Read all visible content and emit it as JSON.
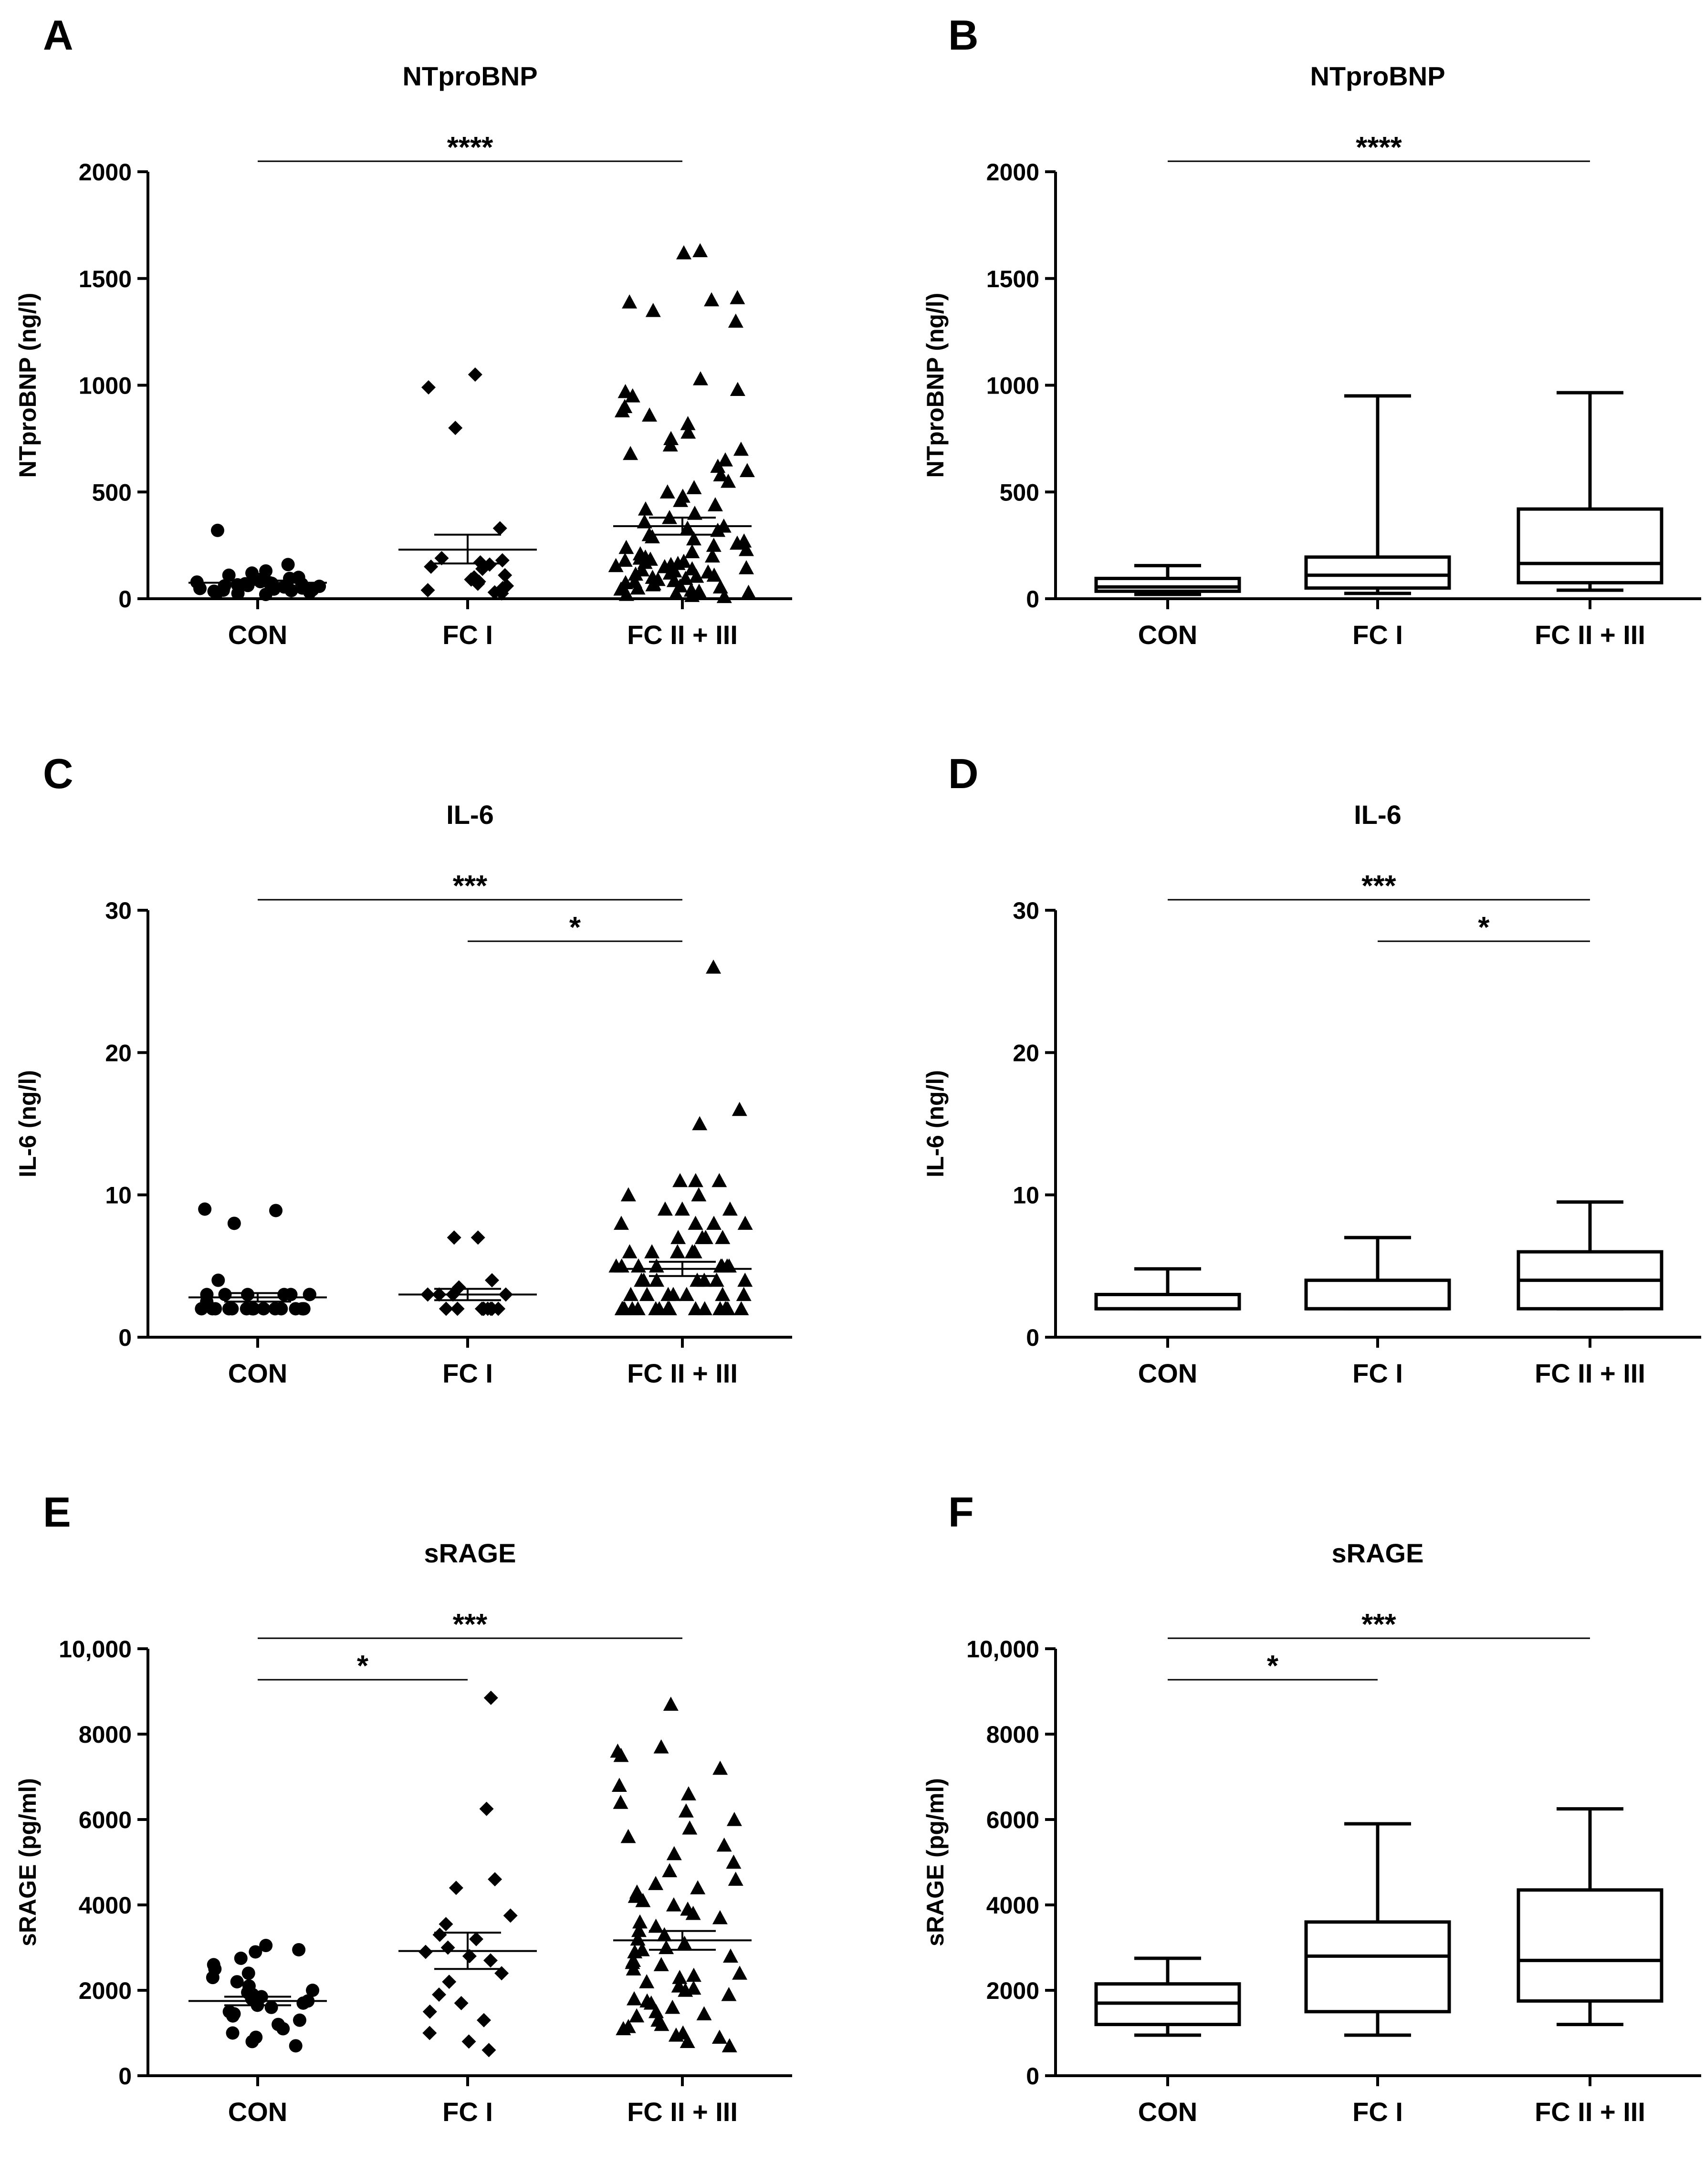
{
  "categories": [
    "CON",
    "FC I",
    "FC II + III"
  ],
  "panels": [
    {
      "id": "A",
      "label": "A",
      "title": "NTproBNP",
      "ylabel": "NTproBNP (ng/l)",
      "style": "scatter",
      "yticks": [
        "0",
        "500",
        "1000",
        "1500",
        "2000"
      ],
      "ytick_values": [
        0,
        500,
        1000,
        1500,
        2000
      ],
      "ylim": [
        0,
        2000
      ],
      "sig": [
        {
          "from": 0,
          "to": 2,
          "text": "****"
        }
      ]
    },
    {
      "id": "B",
      "label": "B",
      "title": "NTproBNP",
      "ylabel": "NTproBNP (ng/l)",
      "style": "box",
      "yticks": [
        "0",
        "500",
        "1000",
        "1500",
        "2000"
      ],
      "ytick_values": [
        0,
        500,
        1000,
        1500,
        2000
      ],
      "ylim": [
        0,
        2000
      ],
      "sig": [
        {
          "from": 0,
          "to": 2,
          "text": "****"
        }
      ]
    },
    {
      "id": "C",
      "label": "C",
      "title": "IL-6",
      "ylabel": "IL-6 (ng/l)",
      "style": "scatter",
      "yticks": [
        "0",
        "10",
        "20",
        "30"
      ],
      "ytick_values": [
        0,
        10,
        20,
        30
      ],
      "ylim": [
        0,
        30
      ],
      "sig": [
        {
          "from": 0,
          "to": 2,
          "text": "***"
        },
        {
          "from": 1,
          "to": 2,
          "text": "*"
        }
      ]
    },
    {
      "id": "D",
      "label": "D",
      "title": "IL-6",
      "ylabel": "IL-6 (ng/l)",
      "style": "box",
      "yticks": [
        "0",
        "10",
        "20",
        "30"
      ],
      "ytick_values": [
        0,
        10,
        20,
        30
      ],
      "ylim": [
        0,
        30
      ],
      "sig": [
        {
          "from": 0,
          "to": 2,
          "text": "***"
        },
        {
          "from": 1,
          "to": 2,
          "text": "*"
        }
      ]
    },
    {
      "id": "E",
      "label": "E",
      "title": "sRAGE",
      "ylabel": "sRAGE (pg/ml)",
      "style": "scatter",
      "yticks": [
        "0",
        "2000",
        "4000",
        "6000",
        "8000",
        "10,000"
      ],
      "ytick_values": [
        0,
        2000,
        4000,
        6000,
        8000,
        10000
      ],
      "ylim": [
        0,
        10000
      ],
      "sig": [
        {
          "from": 0,
          "to": 2,
          "text": "***"
        },
        {
          "from": 0,
          "to": 1,
          "text": "*"
        }
      ]
    },
    {
      "id": "F",
      "label": "F",
      "title": "sRAGE",
      "ylabel": "sRAGE (pg/ml)",
      "style": "box",
      "yticks": [
        "0",
        "2000",
        "4000",
        "6000",
        "8000",
        "10,000"
      ],
      "ytick_values": [
        0,
        2000,
        4000,
        6000,
        8000,
        10000
      ],
      "ylim": [
        0,
        10000
      ],
      "sig": [
        {
          "from": 0,
          "to": 2,
          "text": "***"
        },
        {
          "from": 0,
          "to": 1,
          "text": "*"
        }
      ]
    }
  ],
  "chart_data": [
    {
      "type": "scatter",
      "panel": "A",
      "title": "NTproBNP",
      "ylabel": "NTproBNP (ng/l)",
      "ylim": [
        0,
        2000
      ],
      "categories": [
        "CON",
        "FC I",
        "FC II + III"
      ],
      "markers": [
        "circle",
        "diamond",
        "triangle"
      ],
      "series": [
        {
          "category": "CON",
          "values": [
            320,
            160,
            130,
            120,
            110,
            100,
            95,
            90,
            85,
            80,
            78,
            75,
            72,
            70,
            68,
            65,
            62,
            60,
            58,
            55,
            52,
            50,
            48,
            45,
            42,
            40,
            38,
            35,
            30,
            28,
            25,
            20
          ]
        },
        {
          "category": "FC I",
          "values": [
            1050,
            990,
            800,
            330,
            190,
            180,
            170,
            160,
            150,
            140,
            110,
            100,
            90,
            80,
            70,
            60,
            50,
            40,
            30,
            25
          ]
        },
        {
          "category": "FC II + III",
          "values": [
            1630,
            1620,
            1410,
            1400,
            1390,
            1350,
            1300,
            1030,
            980,
            970,
            950,
            900,
            880,
            860,
            820,
            780,
            750,
            720,
            700,
            680,
            650,
            620,
            600,
            580,
            550,
            520,
            500,
            480,
            460,
            440,
            420,
            400,
            380,
            360,
            340,
            330,
            320,
            300,
            290,
            280,
            270,
            260,
            250,
            240,
            230,
            220,
            210,
            200,
            195,
            190,
            185,
            180,
            175,
            170,
            165,
            160,
            155,
            150,
            145,
            140,
            135,
            130,
            125,
            120,
            115,
            110,
            105,
            100,
            95,
            90,
            85,
            80,
            75,
            70,
            65,
            60,
            55,
            50,
            45,
            40,
            35,
            30,
            25,
            20,
            15,
            10
          ]
        }
      ],
      "mean": [
        75,
        230,
        340
      ],
      "sem_low": [
        65,
        165,
        300
      ],
      "sem_high": [
        85,
        300,
        380
      ]
    },
    {
      "type": "box",
      "panel": "B",
      "title": "NTproBNP",
      "ylabel": "NTproBNP (ng/l)",
      "ylim": [
        0,
        2000
      ],
      "categories": [
        "CON",
        "FC I",
        "FC II + III"
      ],
      "whisker_low": [
        20,
        25,
        40
      ],
      "q1": [
        35,
        50,
        75
      ],
      "median": [
        55,
        110,
        165
      ],
      "q3": [
        95,
        195,
        420
      ],
      "whisker_high": [
        155,
        950,
        965
      ]
    },
    {
      "type": "scatter",
      "panel": "C",
      "title": "IL-6",
      "ylabel": "IL-6 (ng/l)",
      "ylim": [
        0,
        30
      ],
      "categories": [
        "CON",
        "FC I",
        "FC II + III"
      ],
      "markers": [
        "circle",
        "diamond",
        "triangle"
      ],
      "series": [
        {
          "category": "CON",
          "values": [
            9,
            8.9,
            8,
            4,
            3,
            3,
            3,
            3,
            3,
            3,
            3,
            2.5,
            2,
            2,
            2,
            2,
            2,
            2,
            2,
            2,
            2,
            2,
            2,
            2,
            2,
            2,
            2,
            2
          ]
        },
        {
          "category": "FC I",
          "values": [
            7,
            7,
            4,
            3.5,
            3,
            3,
            3,
            3,
            2,
            2,
            2,
            2,
            2,
            2,
            2,
            2,
            2,
            2
          ]
        },
        {
          "category": "FC II + III",
          "values": [
            26,
            16,
            15,
            11,
            11,
            11,
            10,
            10,
            9,
            9,
            9,
            8,
            8,
            8,
            8,
            7,
            7,
            7,
            7,
            6,
            6,
            6,
            6,
            6,
            5,
            5,
            5,
            5,
            5,
            5,
            5,
            5,
            4,
            4,
            4,
            4,
            4,
            4,
            4,
            3,
            3,
            3,
            3,
            3,
            3,
            3,
            2,
            2,
            2,
            2,
            2,
            2,
            2,
            2,
            2,
            2,
            2,
            2,
            2,
            2,
            2,
            2,
            2,
            2,
            2
          ]
        }
      ],
      "mean": [
        2.8,
        3.0,
        4.8
      ],
      "sem_low": [
        2.5,
        2.6,
        4.3
      ],
      "sem_high": [
        3.1,
        3.4,
        5.3
      ]
    },
    {
      "type": "box",
      "panel": "D",
      "title": "IL-6",
      "ylabel": "IL-6 (ng/l)",
      "ylim": [
        0,
        30
      ],
      "categories": [
        "CON",
        "FC I",
        "FC II + III"
      ],
      "whisker_low": [
        2,
        2,
        2
      ],
      "q1": [
        2,
        2,
        2
      ],
      "median": [
        2,
        2,
        4
      ],
      "q3": [
        3,
        4,
        6
      ],
      "whisker_high": [
        4.8,
        7,
        9.5
      ]
    },
    {
      "type": "scatter",
      "panel": "E",
      "title": "sRAGE",
      "ylabel": "sRAGE (pg/ml)",
      "ylim": [
        0,
        10000
      ],
      "categories": [
        "CON",
        "FC I",
        "FC II + III"
      ],
      "markers": [
        "circle",
        "diamond",
        "triangle"
      ],
      "series": [
        {
          "category": "CON",
          "values": [
            3050,
            2950,
            2900,
            2750,
            2600,
            2500,
            2400,
            2300,
            2200,
            2100,
            2000,
            1950,
            1900,
            1850,
            1800,
            1750,
            1700,
            1650,
            1600,
            1500,
            1450,
            1400,
            1300,
            1200,
            1100,
            1000,
            900,
            800,
            700
          ]
        },
        {
          "category": "FC I",
          "values": [
            8850,
            6250,
            4600,
            4400,
            3750,
            3550,
            3300,
            3200,
            3000,
            2900,
            2800,
            2700,
            2400,
            2200,
            1900,
            1700,
            1500,
            1300,
            1000,
            800,
            600
          ]
        },
        {
          "category": "FC II + III",
          "values": [
            8700,
            7700,
            7600,
            7500,
            7200,
            6800,
            6600,
            6400,
            6200,
            6000,
            5800,
            5600,
            5400,
            5200,
            5000,
            4800,
            4600,
            4500,
            4400,
            4300,
            4200,
            4100,
            4000,
            3900,
            3800,
            3700,
            3600,
            3500,
            3400,
            3300,
            3200,
            3100,
            3000,
            2950,
            2900,
            2800,
            2700,
            2650,
            2600,
            2500,
            2400,
            2350,
            2300,
            2200,
            2100,
            2050,
            2000,
            1900,
            1800,
            1750,
            1700,
            1600,
            1500,
            1450,
            1400,
            1300,
            1200,
            1150,
            1100,
            1000,
            950,
            900,
            800,
            700
          ]
        }
      ],
      "mean": [
        1750,
        2920,
        3170
      ],
      "sem_low": [
        1650,
        2500,
        2950
      ],
      "sem_high": [
        1850,
        3350,
        3390
      ]
    },
    {
      "type": "box",
      "panel": "F",
      "title": "sRAGE",
      "ylabel": "sRAGE (pg/ml)",
      "ylim": [
        0,
        10000
      ],
      "categories": [
        "CON",
        "FC I",
        "FC II + III"
      ],
      "whisker_low": [
        950,
        950,
        1200
      ],
      "q1": [
        1200,
        1500,
        1750
      ],
      "median": [
        1700,
        2800,
        2700
      ],
      "q3": [
        2150,
        3600,
        4350
      ],
      "whisker_high": [
        2750,
        5900,
        6250
      ]
    }
  ]
}
